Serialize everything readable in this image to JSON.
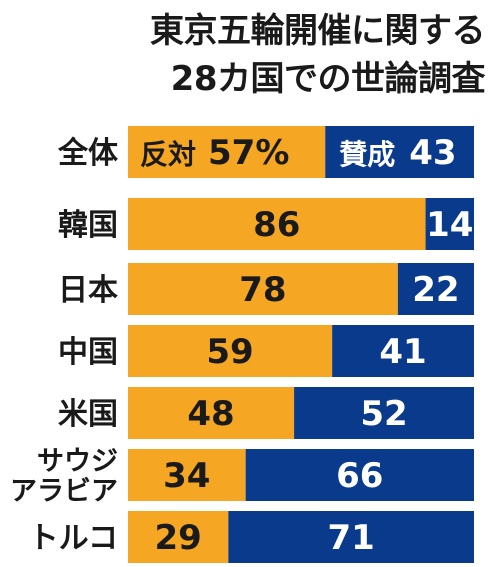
{
  "title": {
    "line1": "東京五輪開催に関する",
    "line2": "28カ国での世論調査"
  },
  "chart_data": {
    "type": "bar",
    "orientation": "horizontal",
    "stacked": true,
    "unit": "%",
    "xlim": [
      0,
      100
    ],
    "grid": false,
    "legend": "inline",
    "categories": [
      [
        "全体"
      ],
      [
        "韓国"
      ],
      [
        "日本"
      ],
      [
        "中国"
      ],
      [
        "米国"
      ],
      [
        "サウジ",
        "アラビア"
      ],
      [
        "トルコ"
      ]
    ],
    "series": [
      {
        "name": "反対",
        "color": "#f5a623",
        "values": [
          57,
          86,
          78,
          59,
          48,
          34,
          29
        ]
      },
      {
        "name": "賛成",
        "color": "#0a3a8c",
        "values": [
          43,
          14,
          22,
          41,
          52,
          66,
          71
        ]
      }
    ],
    "first_row_labels": {
      "oppose_text": "57%",
      "support_text": "43"
    }
  },
  "colors": {
    "oppose": "#f5a623",
    "support": "#0a3a8c",
    "text": "#1a1a1a"
  }
}
